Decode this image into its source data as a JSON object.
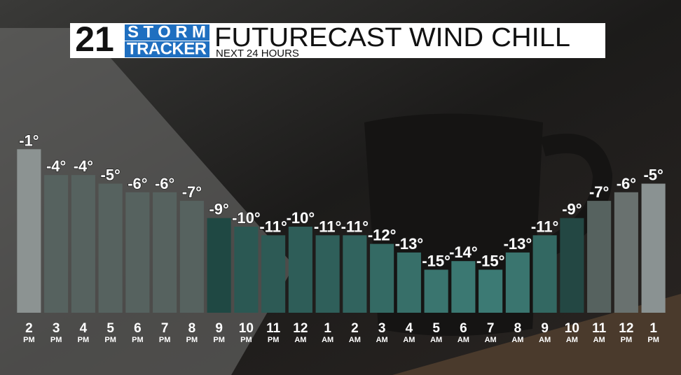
{
  "header": {
    "logo_number": "21",
    "logo_top": "STORM",
    "logo_bottom": "TRACKER"
  },
  "chart_data": {
    "type": "bar",
    "title": "FUTURECAST WIND CHILL",
    "subtitle": "NEXT 24 HOURS",
    "categories": [
      "2",
      "3",
      "4",
      "5",
      "6",
      "7",
      "8",
      "9",
      "10",
      "11",
      "12",
      "1",
      "2",
      "3",
      "4",
      "5",
      "6",
      "7",
      "8",
      "9",
      "10",
      "11",
      "12",
      "1"
    ],
    "periods": [
      "PM",
      "PM",
      "PM",
      "PM",
      "PM",
      "PM",
      "PM",
      "PM",
      "PM",
      "PM",
      "AM",
      "AM",
      "AM",
      "AM",
      "AM",
      "AM",
      "AM",
      "AM",
      "AM",
      "AM",
      "AM",
      "AM",
      "PM",
      "PM"
    ],
    "values": [
      -1,
      -4,
      -4,
      -5,
      -6,
      -6,
      -7,
      -9,
      -10,
      -11,
      -10,
      -11,
      -11,
      -12,
      -13,
      -15,
      -14,
      -15,
      -13,
      -11,
      -9,
      -7,
      -6,
      -5
    ],
    "value_labels": [
      "-1°",
      "-4°",
      "-4°",
      "-5°",
      "-6°",
      "-6°",
      "-7°",
      "-9°",
      "-10°",
      "-11°",
      "-10°",
      "-11°",
      "-11°",
      "-12°",
      "-13°",
      "-15°",
      "-14°",
      "-15°",
      "-13°",
      "-11°",
      "-9°",
      "-7°",
      "-6°",
      "-5°"
    ],
    "colors": [
      "#8c9392",
      "#56625f",
      "#56625f",
      "#56625f",
      "#56625f",
      "#56625f",
      "#56625f",
      "#1f4843",
      "#2b5853",
      "#2d5a55",
      "#2e5d58",
      "#2f5f5a",
      "#31635e",
      "#346a64",
      "#376f69",
      "#3a756f",
      "#3b7872",
      "#3c7a74",
      "#3a756f",
      "#336862",
      "#234743",
      "#56625f",
      "#69716f",
      "#8a9292"
    ],
    "ylim": [
      -20,
      0
    ]
  }
}
